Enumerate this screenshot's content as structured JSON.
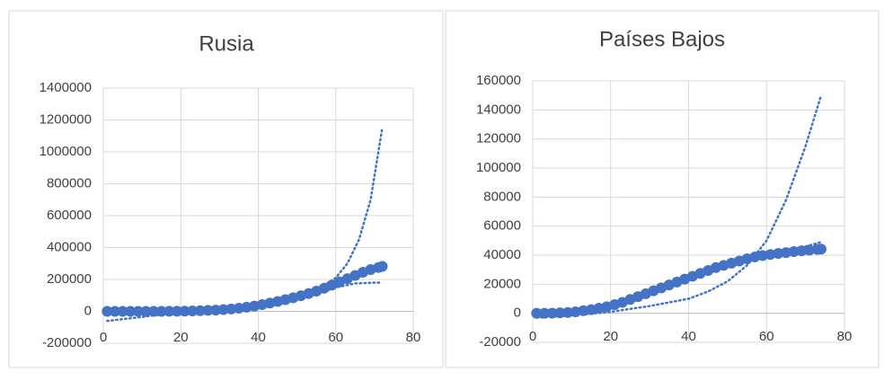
{
  "chart_data": [
    {
      "type": "scatter",
      "title": "Rusia",
      "color": "#4472c4",
      "grid": true,
      "xlim": [
        0,
        80
      ],
      "xticks": [
        0,
        20,
        40,
        60,
        80
      ],
      "ylim": [
        -200000,
        1400000
      ],
      "yticks": [
        -200000,
        0,
        200000,
        400000,
        600000,
        800000,
        1000000,
        1200000,
        1400000
      ],
      "x": [
        1,
        3,
        5,
        7,
        9,
        11,
        13,
        15,
        17,
        19,
        21,
        23,
        25,
        27,
        29,
        31,
        33,
        35,
        37,
        39,
        41,
        43,
        45,
        47,
        49,
        51,
        53,
        55,
        57,
        59,
        61,
        63,
        65,
        67,
        69,
        71,
        72
      ],
      "values": [
        0,
        0,
        0,
        0,
        0,
        100,
        200,
        300,
        500,
        1000,
        1500,
        2500,
        4000,
        6000,
        8000,
        11000,
        15000,
        20000,
        26000,
        33000,
        42000,
        52000,
        62000,
        73000,
        85000,
        98000,
        112000,
        127000,
        145000,
        165000,
        185000,
        205000,
        225000,
        245000,
        262000,
        275000,
        282000
      ],
      "trendlines": [
        {
          "x": [
            1,
            10,
            20,
            30,
            40,
            45,
            50,
            55,
            60,
            63,
            66,
            69,
            72
          ],
          "values": [
            0,
            1000,
            3000,
            8000,
            25000,
            45000,
            80000,
            130000,
            210000,
            300000,
            450000,
            700000,
            1150000
          ]
        },
        {
          "x": [
            1,
            10,
            20,
            30,
            40,
            50,
            55,
            60,
            65,
            70,
            72
          ],
          "values": [
            -60000,
            -35000,
            -5000,
            20000,
            40000,
            80000,
            110000,
            150000,
            175000,
            180000,
            180000
          ]
        }
      ]
    },
    {
      "type": "scatter",
      "title": "Países Bajos",
      "color": "#4472c4",
      "grid": true,
      "xlim": [
        0,
        80
      ],
      "xticks": [
        0,
        20,
        40,
        60,
        80
      ],
      "ylim": [
        -20000,
        160000
      ],
      "yticks": [
        -20000,
        0,
        20000,
        40000,
        60000,
        80000,
        100000,
        120000,
        140000,
        160000
      ],
      "x": [
        1,
        3,
        5,
        7,
        9,
        11,
        13,
        15,
        17,
        19,
        21,
        23,
        25,
        27,
        29,
        31,
        33,
        35,
        37,
        39,
        41,
        43,
        45,
        47,
        49,
        51,
        53,
        55,
        57,
        59,
        61,
        63,
        65,
        67,
        69,
        71,
        73,
        74
      ],
      "values": [
        0,
        0,
        100,
        300,
        600,
        1000,
        1800,
        2500,
        3500,
        4500,
        6000,
        7500,
        9500,
        11500,
        13500,
        15500,
        17500,
        19500,
        21500,
        23500,
        25500,
        27500,
        29500,
        31500,
        33000,
        34500,
        36000,
        37500,
        38800,
        39800,
        40500,
        41200,
        41800,
        42500,
        43000,
        43500,
        44000,
        44200
      ],
      "trendlines": [
        {
          "x": [
            1,
            10,
            20,
            30,
            40,
            45,
            50,
            55,
            60,
            65,
            70,
            74
          ],
          "values": [
            -3000,
            -1500,
            1000,
            5000,
            10000,
            15000,
            22000,
            33000,
            50000,
            78000,
            115000,
            150000
          ]
        },
        {
          "x": [
            1,
            10,
            20,
            30,
            40,
            50,
            60,
            70,
            74
          ],
          "values": [
            -1000,
            1000,
            6000,
            15000,
            25000,
            33000,
            40000,
            46000,
            49000
          ]
        }
      ]
    }
  ]
}
